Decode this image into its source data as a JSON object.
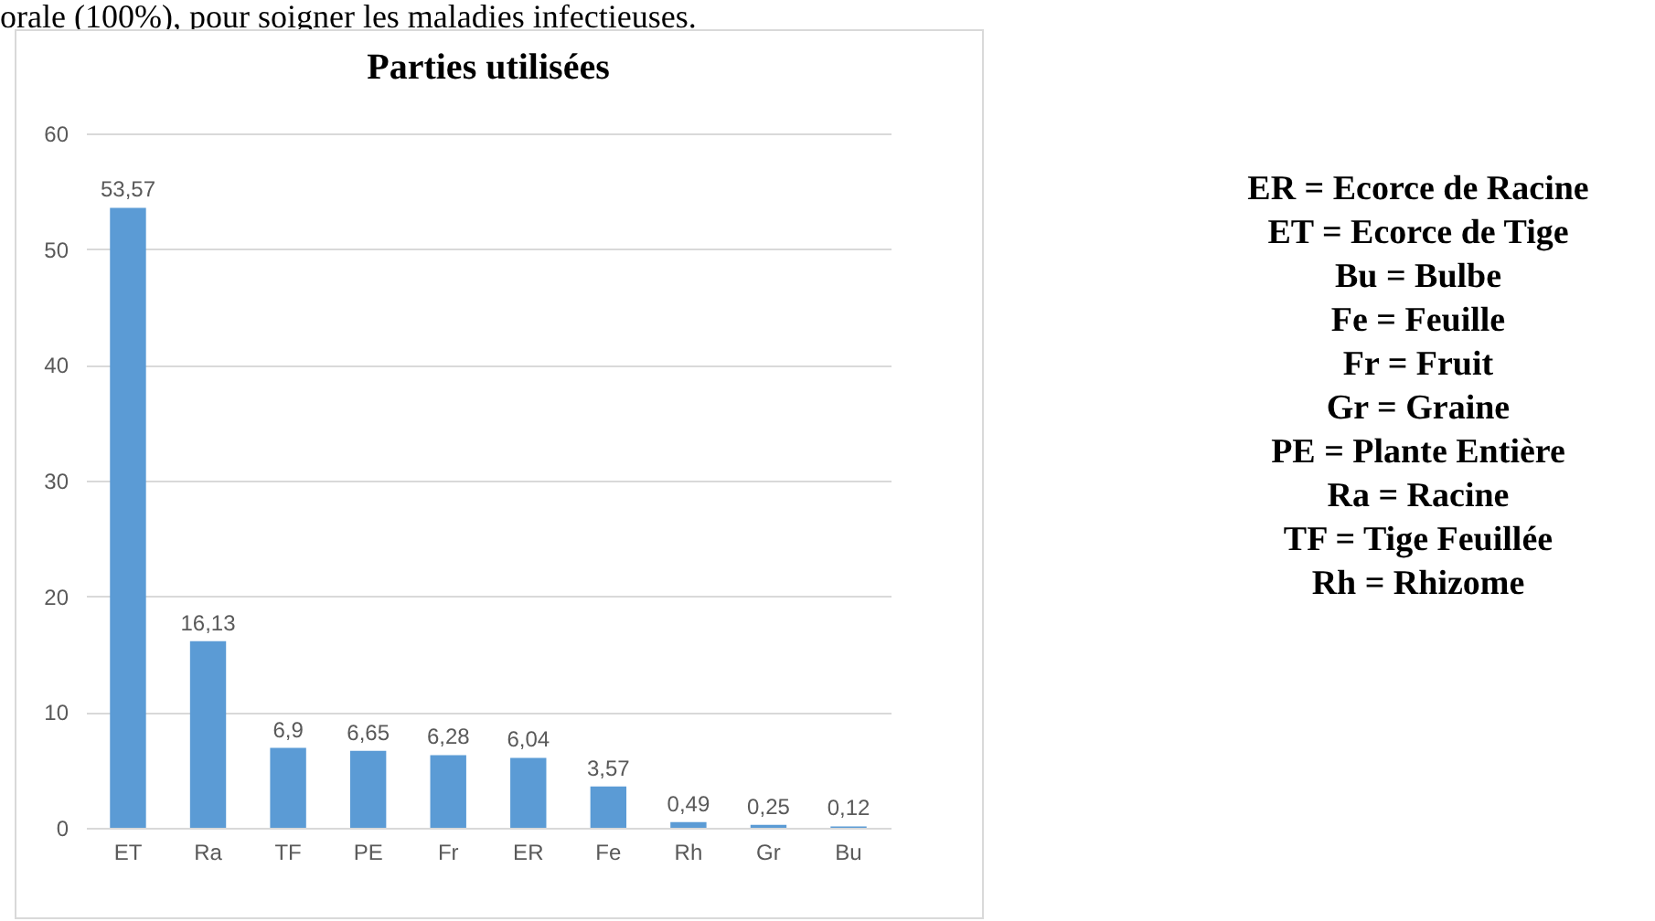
{
  "chart_data": {
    "type": "bar",
    "title": "Parties utilisées",
    "categories": [
      "ET",
      "Ra",
      "TF",
      "PE",
      "Fr",
      "ER",
      "Fe",
      "Rh",
      "Gr",
      "Bu"
    ],
    "values": [
      53.57,
      16.13,
      6.9,
      6.65,
      6.28,
      6.04,
      3.57,
      0.49,
      0.25,
      0.12
    ],
    "value_labels": [
      "53,57",
      "16,13",
      "6,9",
      "6,65",
      "6,28",
      "6,04",
      "3,57",
      "0,49",
      "0,25",
      "0,12"
    ],
    "color": "#5b9bd5",
    "ylim": [
      0,
      60
    ],
    "yticks": [
      0,
      10,
      20,
      30,
      40,
      50,
      60
    ],
    "grid": "y",
    "annotations": [
      "orale (100%), pour soigner les maladies infectieuses.",
      "ER = Ecorce de Racine",
      "ET = Ecorce de Tige",
      "Bu = Bulbe",
      "Fe = Feuille",
      "Fr = Fruit",
      "Gr = Graine",
      "PE = Plante Entière",
      "Ra = Racine",
      "TF = Tige Feuillée",
      "Rh = Rhizome"
    ]
  }
}
